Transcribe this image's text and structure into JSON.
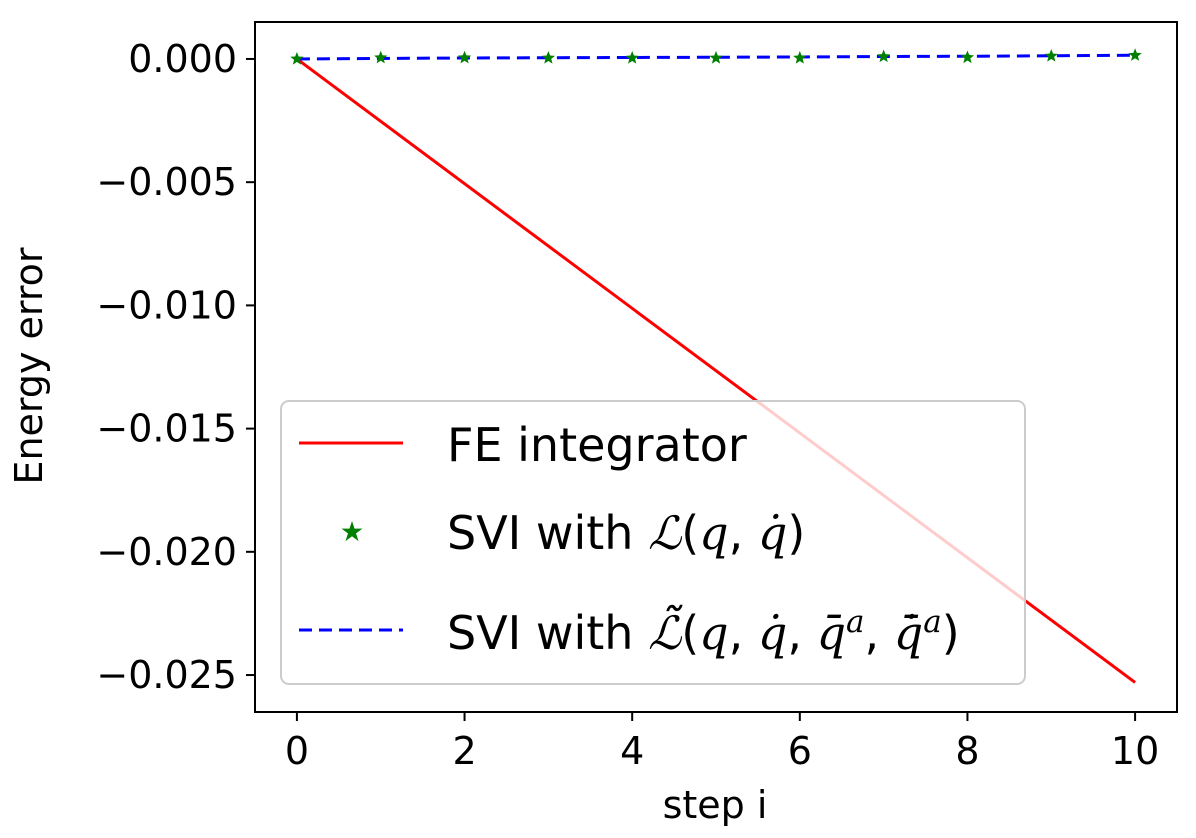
{
  "chart_data": {
    "type": "line",
    "title": "",
    "xlabel": "step i",
    "ylabel": "Energy error",
    "xlim": [
      -0.5,
      10.5
    ],
    "ylim": [
      -0.0265,
      0.0015
    ],
    "x_ticks": [
      0,
      2,
      4,
      6,
      8,
      10
    ],
    "x_tick_labels": [
      "0",
      "2",
      "4",
      "6",
      "8",
      "10"
    ],
    "y_ticks": [
      0.0,
      -0.005,
      -0.01,
      -0.015,
      -0.02,
      -0.025
    ],
    "y_tick_labels": [
      "0.000",
      "−0.005",
      "−0.010",
      "−0.015",
      "−0.020",
      "−0.025"
    ],
    "grid": false,
    "legend_position": "lower-left",
    "series": [
      {
        "name": "FE integrator",
        "color": "#ff0000",
        "style": "solid-line",
        "x": [
          0,
          10
        ],
        "values": [
          0.0,
          -0.0253
        ]
      },
      {
        "name": "SVI with ℒ(q, q̇)",
        "color": "#008000",
        "style": "star-markers",
        "x": [
          0,
          1,
          2,
          3,
          4,
          5,
          6,
          7,
          8,
          9,
          10
        ],
        "values": [
          0.0,
          5e-05,
          5e-05,
          4e-05,
          4e-05,
          4e-05,
          4e-05,
          0.0001,
          6e-05,
          0.00012,
          0.00015
        ]
      },
      {
        "name": "SVI with ℒ̃(q, q̇, q̄ᵃ, q̄̇ᵃ)",
        "color": "#0000ff",
        "style": "dashed-line",
        "x": [
          0,
          1,
          2,
          3,
          4,
          5,
          6,
          7,
          8,
          9,
          10
        ],
        "values": [
          0.0,
          2e-05,
          4e-05,
          5e-05,
          6e-05,
          7e-05,
          8e-05,
          0.0001,
          0.00011,
          0.00013,
          0.00015
        ]
      }
    ]
  }
}
